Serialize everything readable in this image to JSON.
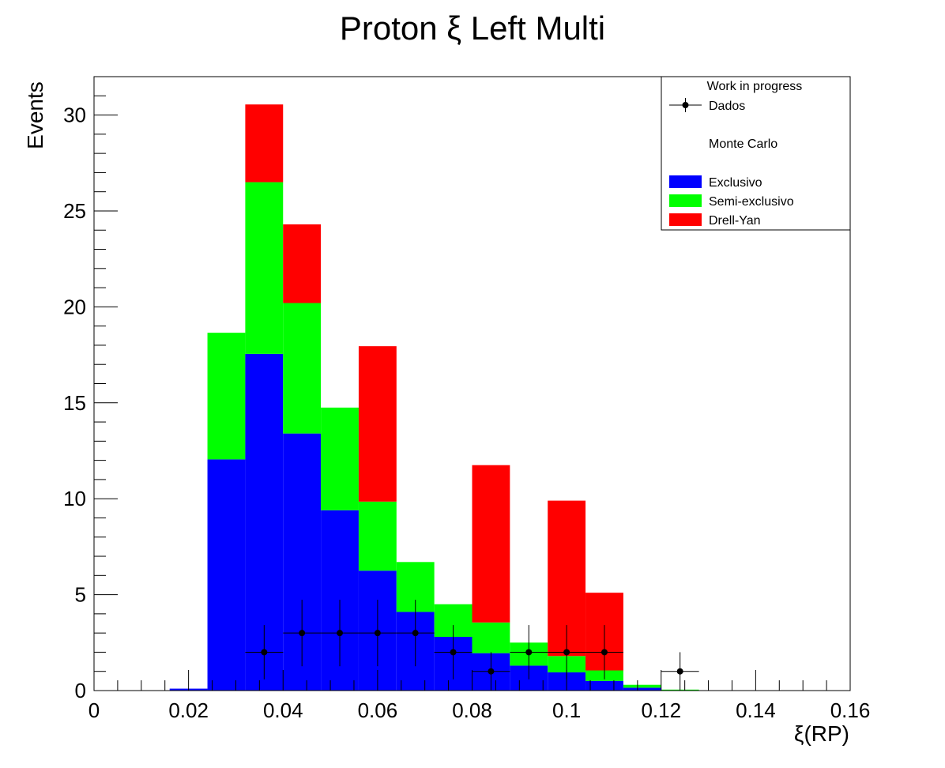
{
  "chart_data": {
    "type": "bar",
    "title": "Proton ξ Left Multi",
    "xlabel": "ξ(RP)",
    "ylabel": "Events",
    "xlim": [
      0,
      0.16
    ],
    "ylim": [
      0,
      32
    ],
    "x_ticks": [
      "0",
      "0.02",
      "0.04",
      "0.06",
      "0.08",
      "0.1",
      "0.12",
      "0.14",
      "0.16"
    ],
    "y_ticks": [
      "0",
      "5",
      "10",
      "15",
      "20",
      "25",
      "30"
    ],
    "bins": [
      [
        0.016,
        0.024
      ],
      [
        0.024,
        0.032
      ],
      [
        0.032,
        0.04
      ],
      [
        0.04,
        0.048
      ],
      [
        0.048,
        0.056
      ],
      [
        0.056,
        0.064
      ],
      [
        0.064,
        0.072
      ],
      [
        0.072,
        0.08
      ],
      [
        0.08,
        0.088
      ],
      [
        0.088,
        0.096
      ],
      [
        0.096,
        0.104
      ],
      [
        0.104,
        0.112
      ],
      [
        0.112,
        0.12
      ],
      [
        0.12,
        0.128
      ]
    ],
    "stack": [
      {
        "name": "Exclusivo",
        "color": "#0000ff",
        "values": [
          0.1,
          12.05,
          17.55,
          13.4,
          9.4,
          6.25,
          4.1,
          2.8,
          1.95,
          1.3,
          0.95,
          0.5,
          0.15,
          0
        ]
      },
      {
        "name": "Semi-exclusivo",
        "color": "#00ff00",
        "values": [
          0,
          6.6,
          8.95,
          6.8,
          5.35,
          3.6,
          2.6,
          1.7,
          1.6,
          1.2,
          0.85,
          0.55,
          0.15,
          0.05
        ]
      },
      {
        "name": "Drell-Yan",
        "color": "#ff0000",
        "values": [
          0,
          0,
          4.05,
          4.1,
          0,
          8.1,
          0,
          0,
          8.2,
          0,
          8.1,
          4.05,
          0,
          0
        ]
      }
    ],
    "data_points": {
      "name": "Dados",
      "x": [
        0.036,
        0.044,
        0.052,
        0.06,
        0.068,
        0.076,
        0.084,
        0.092,
        0.1,
        0.108,
        0.124
      ],
      "y": [
        2,
        3,
        3,
        3,
        3,
        2,
        1,
        2,
        2,
        2,
        1
      ],
      "xerr": 0.004
    },
    "legend": {
      "placement": "top-right",
      "entries": [
        "Work in progress",
        "Dados",
        "Monte Carlo",
        "Exclusivo",
        "Semi-exclusivo",
        "Drell-Yan"
      ]
    }
  }
}
